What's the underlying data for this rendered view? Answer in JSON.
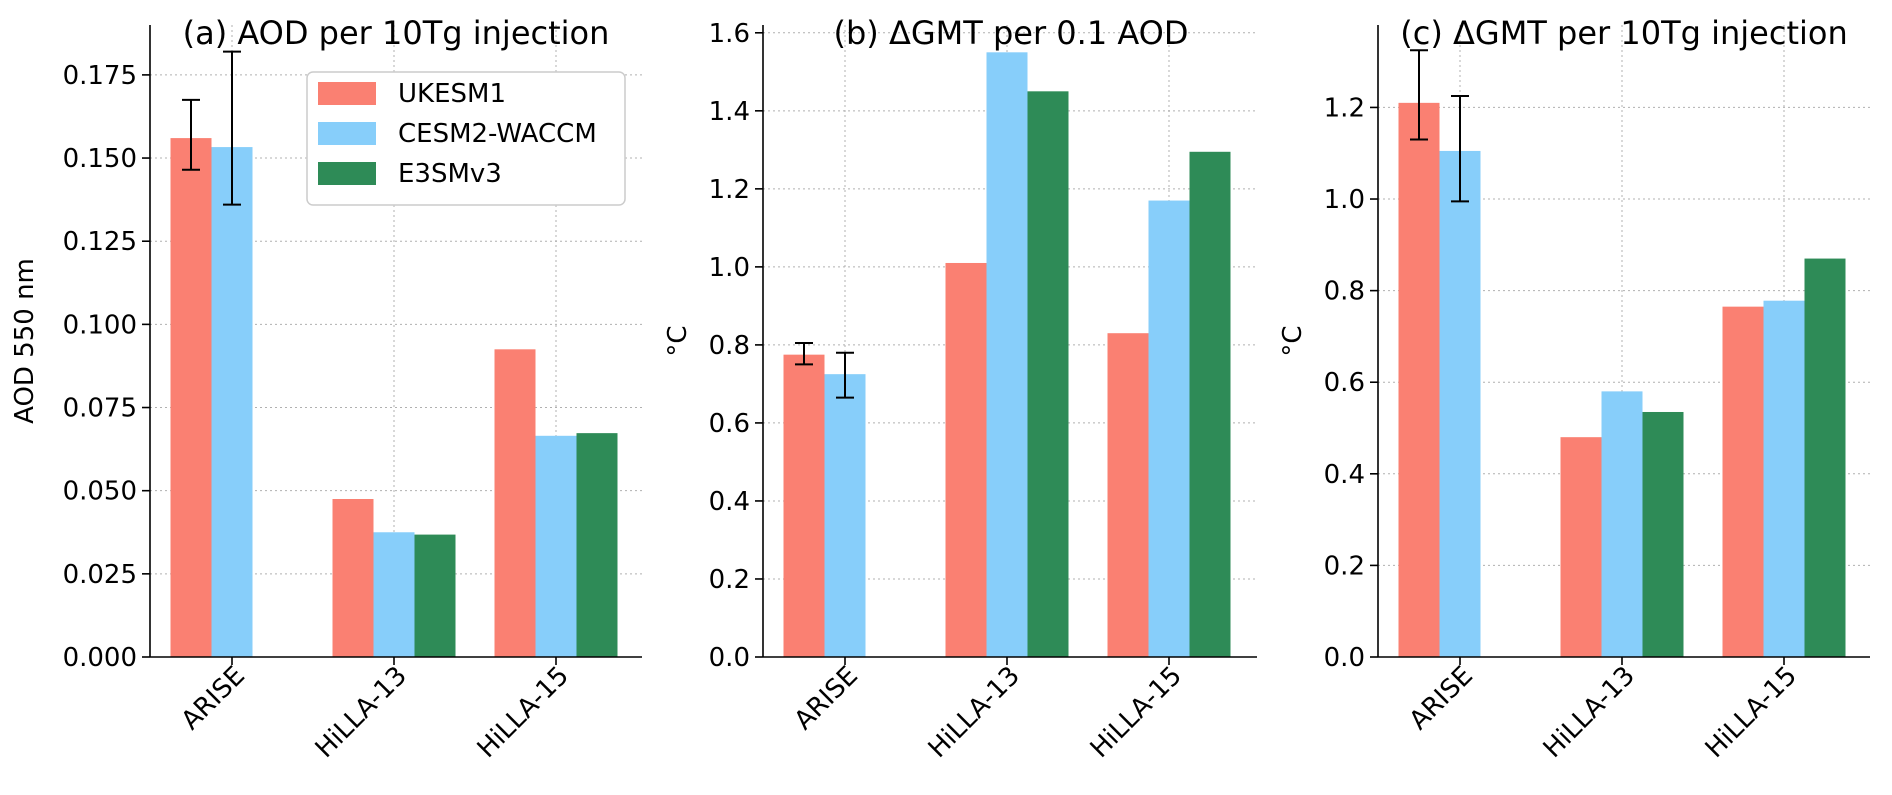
{
  "figure": {
    "colors": {
      "UKESM1": "#fa8072",
      "CESM2-WACCM": "#87cefa",
      "E3SMv3": "#2e8b57"
    }
  },
  "chart_data": [
    {
      "type": "bar",
      "title": "(a) AOD per 10Tg injection",
      "xlabel": "",
      "ylabel": "AOD 550 nm",
      "ylim": [
        0,
        0.19
      ],
      "yticks": [
        "0.000",
        "0.025",
        "0.050",
        "0.075",
        "0.100",
        "0.125",
        "0.150",
        "0.175"
      ],
      "grid": true,
      "legend": {
        "placement": "top-right",
        "entries": [
          "UKESM1",
          "CESM2-WACCM",
          "E3SMv3"
        ]
      },
      "categories": [
        "ARISE",
        "HiLLA-13",
        "HiLLA-15"
      ],
      "series": [
        {
          "name": "UKESM1",
          "values": [
            0.156,
            0.0475,
            0.0925
          ],
          "errors": [
            [
              0.1465,
              0.1675
            ],
            null,
            null
          ]
        },
        {
          "name": "CESM2-WACCM",
          "values": [
            0.1533,
            0.0375,
            0.0665
          ],
          "errors": [
            [
              0.136,
              0.182
            ],
            null,
            null
          ]
        },
        {
          "name": "E3SMv3",
          "values": [
            null,
            0.0368,
            0.0673
          ],
          "errors": [
            null,
            null,
            null
          ]
        }
      ]
    },
    {
      "type": "bar",
      "title": "(b) ΔGMT per 0.1 AOD",
      "xlabel": "",
      "ylabel": "°C",
      "ylim": [
        0,
        1.62
      ],
      "yticks": [
        "0.0",
        "0.2",
        "0.4",
        "0.6",
        "0.8",
        "1.0",
        "1.2",
        "1.4",
        "1.6"
      ],
      "grid": true,
      "categories": [
        "ARISE",
        "HiLLA-13",
        "HiLLA-15"
      ],
      "series": [
        {
          "name": "UKESM1",
          "values": [
            0.775,
            1.01,
            0.83
          ],
          "errors": [
            [
              0.75,
              0.805
            ],
            null,
            null
          ]
        },
        {
          "name": "CESM2-WACCM",
          "values": [
            0.725,
            1.55,
            1.17
          ],
          "errors": [
            [
              0.665,
              0.78
            ],
            null,
            null
          ]
        },
        {
          "name": "E3SMv3",
          "values": [
            null,
            1.45,
            1.295
          ],
          "errors": [
            null,
            null,
            null
          ]
        }
      ]
    },
    {
      "type": "bar",
      "title": "(c) ΔGMT per 10Tg injection",
      "xlabel": "",
      "ylabel": "°C",
      "ylim": [
        0,
        1.38
      ],
      "yticks": [
        "0.0",
        "0.2",
        "0.4",
        "0.6",
        "0.8",
        "1.0",
        "1.2"
      ],
      "grid": true,
      "categories": [
        "ARISE",
        "HiLLA-13",
        "HiLLA-15"
      ],
      "series": [
        {
          "name": "UKESM1",
          "values": [
            1.21,
            0.48,
            0.765
          ],
          "errors": [
            [
              1.13,
              1.325
            ],
            null,
            null
          ]
        },
        {
          "name": "CESM2-WACCM",
          "values": [
            1.105,
            0.58,
            0.778
          ],
          "errors": [
            [
              0.995,
              1.225
            ],
            null,
            null
          ]
        },
        {
          "name": "E3SMv3",
          "values": [
            null,
            0.535,
            0.87
          ],
          "errors": [
            null,
            null,
            null
          ]
        }
      ]
    }
  ]
}
